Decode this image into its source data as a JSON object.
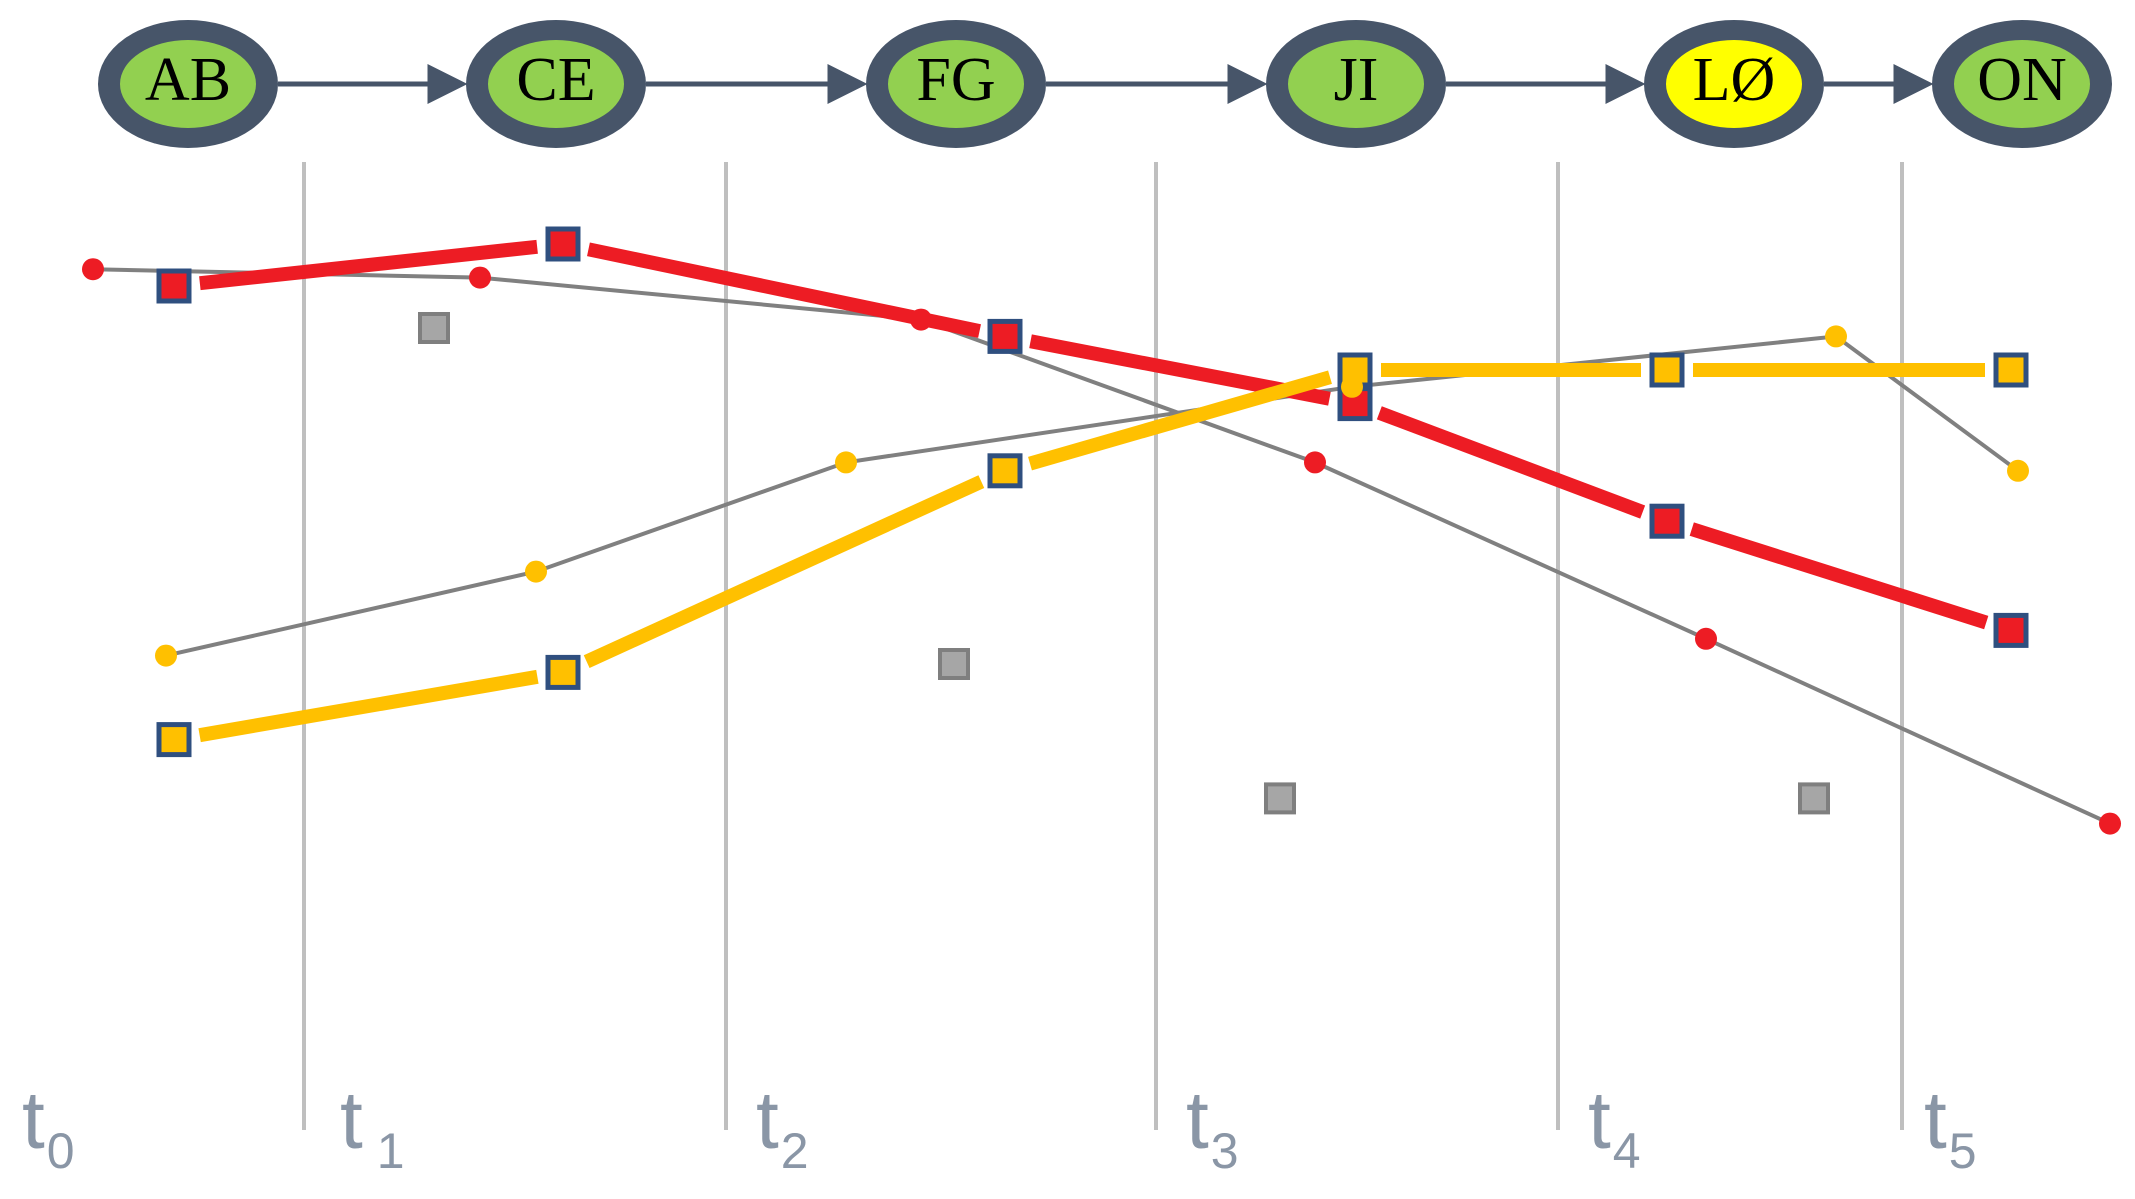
{
  "colors": {
    "node_ring": "#475569",
    "node_fill_default": "#92d050",
    "node_fill_highlight": "#ffff00",
    "arrow": "#475569",
    "divider": "#bfbfbf",
    "red_series": "#ed1c24",
    "yellow_series": "#ffc000",
    "thin_line": "#808080",
    "gray_marker": "#a6a6a6",
    "marker_border": "#2f4f7f"
  },
  "sequence": {
    "nodes": [
      {
        "label": "AB",
        "highlight": false
      },
      {
        "label": "CE",
        "highlight": false
      },
      {
        "label": "FG",
        "highlight": false
      },
      {
        "label": "JI",
        "highlight": false
      },
      {
        "label": "LØ",
        "highlight": true
      },
      {
        "label": "ON",
        "highlight": false
      }
    ]
  },
  "time_steps": [
    {
      "main": "t",
      "sub": "0"
    },
    {
      "main": "t",
      "sub": "1"
    },
    {
      "main": "t",
      "sub": "2"
    },
    {
      "main": "t",
      "sub": "3"
    },
    {
      "main": "t",
      "sub": "4"
    },
    {
      "main": "t",
      "sub": "5"
    }
  ],
  "chart_data": {
    "type": "line",
    "series": [
      {
        "style": "thick",
        "color": "red",
        "marker": "square-bordered",
        "values": [
          0.85,
          0.9,
          0.79,
          0.71,
          0.57,
          0.44
        ]
      },
      {
        "style": "thick",
        "color": "yellow",
        "marker": "square-bordered",
        "values": [
          0.31,
          0.39,
          0.63,
          0.75,
          0.75,
          0.75
        ]
      },
      {
        "style": "thin",
        "color": "red",
        "marker": "dot",
        "values": [
          0.87,
          0.86,
          0.81,
          0.64,
          0.43,
          0.21
        ]
      },
      {
        "style": "thin",
        "color": "yellow",
        "marker": "dot",
        "values": [
          0.41,
          0.51,
          0.64,
          0.73,
          0.79,
          0.63
        ]
      },
      {
        "style": "markers-only",
        "color": "gray",
        "marker": "square",
        "values": [
          0.8,
          0.4,
          0.24,
          0.24
        ]
      }
    ]
  }
}
